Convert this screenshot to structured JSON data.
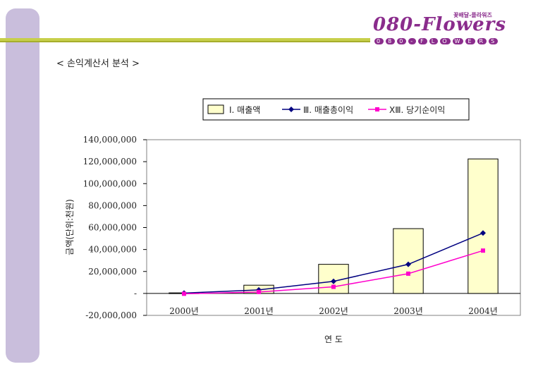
{
  "slide": {
    "title": "< 손익계산서 분석 >"
  },
  "logo": {
    "text": "080-Flowers",
    "sub": "꽃배달-플라워즈",
    "dots": [
      "0",
      "8",
      "0",
      "-",
      "F",
      "L",
      "O",
      "W",
      "E",
      "R",
      "S"
    ]
  },
  "chart_data": {
    "type": "bar",
    "categories": [
      "2000년",
      "2001년",
      "2002년",
      "2003년",
      "2004년"
    ],
    "xlabel": "연 도",
    "ylabel": "금액(단위:천원)",
    "ylim": [
      -20000000,
      140000000
    ],
    "yticks": [
      {
        "value": 140000000,
        "label": "140,000,000"
      },
      {
        "value": 120000000,
        "label": "120,000,000"
      },
      {
        "value": 100000000,
        "label": "100,000,000"
      },
      {
        "value": 80000000,
        "label": "80,000,000"
      },
      {
        "value": 60000000,
        "label": "60,000,000"
      },
      {
        "value": 40000000,
        "label": "40,000,000"
      },
      {
        "value": 20000000,
        "label": "20,000,000"
      },
      {
        "value": 0,
        "label": "-"
      },
      {
        "value": -20000000,
        "label": "-20,000,000"
      }
    ],
    "grid": false,
    "legend_position": "top",
    "series": [
      {
        "name": "Ⅰ. 매출액",
        "kind": "bar",
        "color": "#ffffcc",
        "values": [
          500000,
          7500000,
          26500000,
          59000000,
          122500000
        ]
      },
      {
        "name": "Ⅲ. 매출총이익",
        "kind": "line",
        "color": "#000080",
        "marker": "diamond",
        "values": [
          300000,
          3200000,
          11000000,
          26500000,
          55000000
        ]
      },
      {
        "name": "XⅢ. 당기순이익",
        "kind": "line",
        "color": "#ff00cc",
        "marker": "square",
        "values": [
          -300000,
          1300000,
          6000000,
          18000000,
          39000000
        ]
      }
    ]
  }
}
